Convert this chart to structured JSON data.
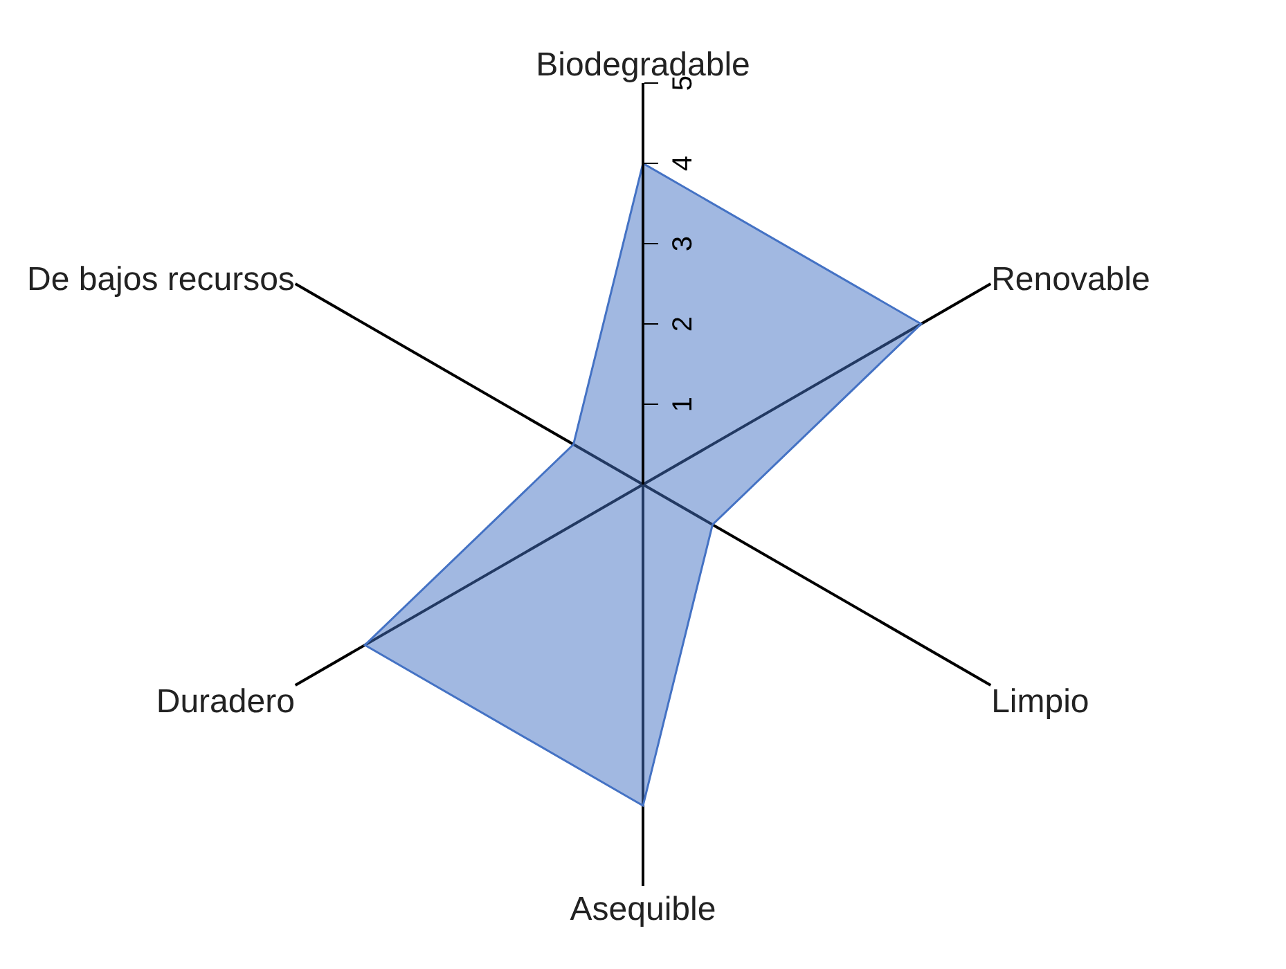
{
  "chart_data": {
    "type": "radar",
    "categories": [
      "Biodegradable",
      "Renovable",
      "Limpio",
      "Asequible",
      "Duradero",
      "De bajos recursos"
    ],
    "series": [
      {
        "color": "#4472c4",
        "values": [
          4,
          4,
          1,
          4,
          4,
          1
        ]
      }
    ],
    "ylim": [
      0,
      5
    ],
    "yticks": [
      1,
      2,
      3,
      4,
      5
    ]
  }
}
